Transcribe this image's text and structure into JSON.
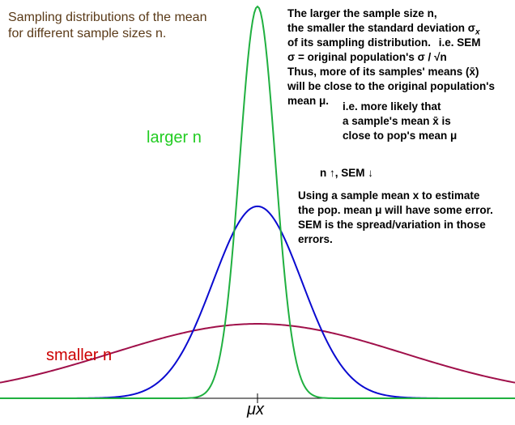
{
  "title_lines": [
    "Sampling distributions of the mean",
    "for different sample sizes n."
  ],
  "explanation_lines": [
    "The larger the sample size n,",
    "the smaller the standard deviation σ",
    "of its sampling distribution.",
    "σ = original population's σ / √n",
    "Thus, more of its samples' means (x̄)",
    "will be close to the original population's",
    "mean μ."
  ],
  "sem_note": "i.e. SEM",
  "subscript_x": "x",
  "likely_lines": [
    "i.e. more likely that",
    "a sample's mean x̄ is",
    "close to pop's mean μ"
  ],
  "trend": "n ↑,  SEM ↓",
  "error_lines": [
    "Using a sample mean x to estimate",
    "the pop. mean μ will have some error.",
    "SEM is the spread/variation in those",
    "errors."
  ],
  "labels": {
    "larger_n": "larger n",
    "smaller_n": "smaller n",
    "axis_mu": "μx"
  },
  "curves": [
    {
      "id": "small",
      "sd": 1.8,
      "relative_peak": 0.19,
      "color": "#a0104a"
    },
    {
      "id": "medium",
      "sd": 0.55,
      "relative_peak": 0.49,
      "color": "#0a0ad0"
    },
    {
      "id": "large",
      "sd": 0.22,
      "relative_peak": 1.0,
      "color": "#20b040"
    }
  ],
  "colors": {
    "title": "#5a3a18",
    "larger_n": "#22cc22",
    "smaller_n": "#cc0000",
    "text": "#000000"
  }
}
